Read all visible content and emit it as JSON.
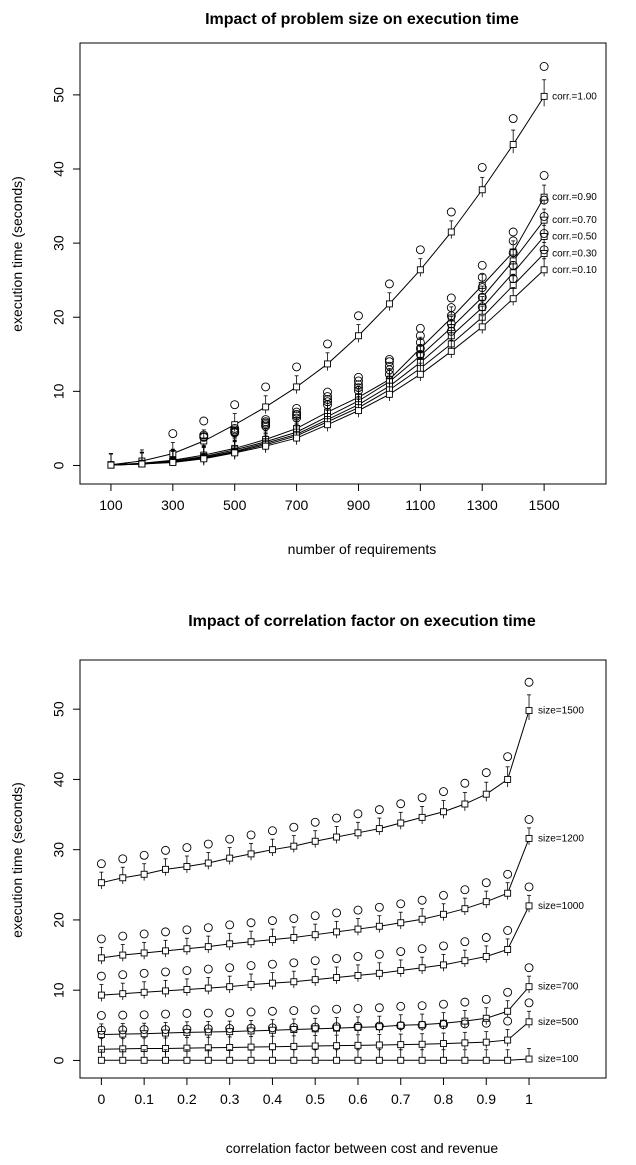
{
  "chart_data": [
    {
      "type": "line",
      "title": "Impact of problem size on execution time",
      "xlabel": "number of requirements",
      "ylabel": "execution time (seconds)",
      "x": [
        100,
        200,
        300,
        400,
        500,
        600,
        700,
        800,
        900,
        1000,
        1100,
        1200,
        1300,
        1400,
        1500
      ],
      "xlim": [
        0,
        1700
      ],
      "ylim": [
        -2.5,
        57
      ],
      "xticks": [
        "100",
        "300",
        "500",
        "700",
        "900",
        "1100",
        "1300",
        "1500"
      ],
      "yticks": [
        "0",
        "10",
        "20",
        "30",
        "40",
        "50"
      ],
      "markers": "boxplot",
      "series": [
        {
          "name": "corr.=1.00",
          "values": [
            0.1,
            0.6,
            1.6,
            3.3,
            5.5,
            7.9,
            10.6,
            13.7,
            17.5,
            21.8,
            26.4,
            31.5,
            37.2,
            43.3,
            49.8
          ]
        },
        {
          "name": "corr.=0.90",
          "values": [
            0.1,
            0.3,
            0.7,
            1.4,
            2.3,
            3.5,
            5.0,
            7.2,
            9.2,
            11.6,
            15.8,
            19.9,
            24.3,
            28.8,
            36.2
          ]
        },
        {
          "name": "corr.=0.70",
          "values": [
            0.05,
            0.25,
            0.6,
            1.2,
            2.1,
            3.2,
            4.5,
            6.6,
            8.7,
            11.3,
            14.8,
            18.6,
            22.7,
            27.6,
            33.1
          ]
        },
        {
          "name": "corr.=0.50",
          "values": [
            0.05,
            0.2,
            0.5,
            1.1,
            1.9,
            3.0,
            4.2,
            6.2,
            8.2,
            10.7,
            13.9,
            17.5,
            21.3,
            26.0,
            30.9
          ]
        },
        {
          "name": "corr.=0.30",
          "values": [
            0.05,
            0.2,
            0.5,
            1.0,
            1.8,
            2.8,
            4.0,
            5.9,
            7.8,
            10.2,
            13.1,
            16.4,
            20.0,
            24.3,
            28.6
          ]
        },
        {
          "name": "corr.=0.10",
          "values": [
            0.05,
            0.2,
            0.4,
            0.9,
            1.7,
            2.6,
            3.7,
            5.5,
            7.4,
            9.6,
            12.3,
            15.4,
            18.7,
            22.5,
            26.4
          ]
        }
      ]
    },
    {
      "type": "line",
      "title": "Impact of correlation factor on execution time",
      "xlabel": "correlation factor between cost and revenue",
      "ylabel": "execution time (seconds)",
      "x": [
        0,
        0.05,
        0.1,
        0.15,
        0.2,
        0.25,
        0.3,
        0.35,
        0.4,
        0.45,
        0.5,
        0.55,
        0.6,
        0.65,
        0.7,
        0.75,
        0.8,
        0.85,
        0.9,
        0.95,
        1.0
      ],
      "xlim": [
        -0.05,
        1.18
      ],
      "ylim": [
        -2.5,
        57
      ],
      "xticks": [
        "0",
        "0.1",
        "0.2",
        "0.3",
        "0.4",
        "0.5",
        "0.6",
        "0.7",
        "0.8",
        "0.9",
        "1"
      ],
      "yticks": [
        "0",
        "10",
        "20",
        "30",
        "40",
        "50"
      ],
      "markers": "boxplot",
      "series": [
        {
          "name": "size=1500",
          "values": [
            25.3,
            26.0,
            26.5,
            27.2,
            27.6,
            28.1,
            28.8,
            29.4,
            30.0,
            30.5,
            31.2,
            31.8,
            32.4,
            33.0,
            33.8,
            34.6,
            35.4,
            36.5,
            37.9,
            40.0,
            49.8
          ]
        },
        {
          "name": "size=1200",
          "values": [
            14.6,
            15.0,
            15.3,
            15.6,
            15.9,
            16.2,
            16.6,
            16.9,
            17.2,
            17.5,
            17.9,
            18.3,
            18.7,
            19.1,
            19.6,
            20.1,
            20.8,
            21.6,
            22.6,
            23.8,
            31.6
          ]
        },
        {
          "name": "size=1000",
          "values": [
            9.3,
            9.5,
            9.7,
            9.9,
            10.1,
            10.3,
            10.5,
            10.8,
            11.0,
            11.2,
            11.5,
            11.8,
            12.1,
            12.4,
            12.8,
            13.2,
            13.6,
            14.2,
            14.8,
            15.8,
            22.0
          ]
        },
        {
          "name": "size=700",
          "values": [
            3.7,
            3.75,
            3.8,
            3.9,
            4.0,
            4.05,
            4.1,
            4.2,
            4.3,
            4.4,
            4.5,
            4.6,
            4.7,
            4.8,
            5.0,
            5.1,
            5.3,
            5.6,
            6.0,
            7.0,
            10.5
          ]
        },
        {
          "name": "size=500",
          "values": [
            1.6,
            1.65,
            1.7,
            1.7,
            1.75,
            1.8,
            1.85,
            1.9,
            1.95,
            2.0,
            2.05,
            2.1,
            2.15,
            2.2,
            2.25,
            2.3,
            2.4,
            2.5,
            2.6,
            2.9,
            5.5
          ]
        },
        {
          "name": "size=100",
          "values": [
            0.02,
            0.02,
            0.02,
            0.02,
            0.02,
            0.02,
            0.02,
            0.02,
            0.02,
            0.02,
            0.02,
            0.02,
            0.02,
            0.02,
            0.02,
            0.02,
            0.02,
            0.02,
            0.02,
            0.02,
            0.2
          ]
        }
      ]
    }
  ]
}
